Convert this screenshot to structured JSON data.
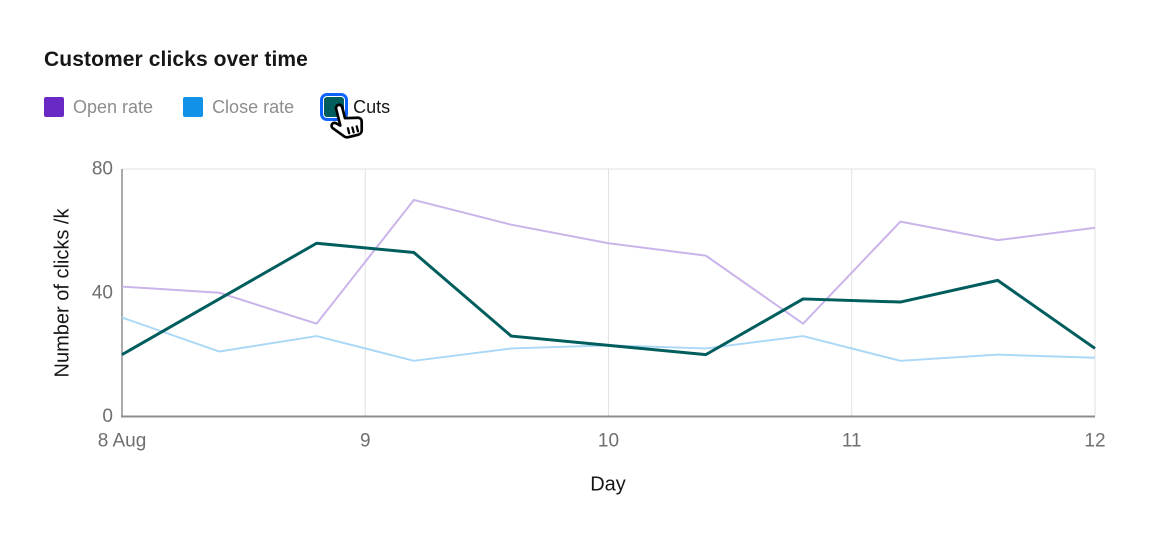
{
  "title": "Customer clicks over time",
  "legend": {
    "items": [
      {
        "label": "Open rate",
        "color": "#6929c4",
        "state": "muted",
        "focused": false
      },
      {
        "label": "Close rate",
        "color": "#1192e8",
        "state": "muted",
        "focused": false
      },
      {
        "label": "Cuts",
        "color": "#005d5d",
        "state": "active",
        "focused": true
      }
    ]
  },
  "chart_data": {
    "type": "line",
    "title": "Customer clicks over time",
    "xlabel": "Day",
    "ylabel": "Number of clicks /k",
    "xlim": [
      8,
      12
    ],
    "ylim": [
      0,
      80
    ],
    "legend_position": "top",
    "grid": {
      "vertical": true,
      "horizontal": "top-only"
    },
    "x": [
      8,
      8.4,
      8.8,
      9.2,
      9.6,
      10,
      10.4,
      10.8,
      11.2,
      11.6,
      12
    ],
    "x_ticks": [
      {
        "label": "8 Aug",
        "value": 8
      },
      {
        "label": "9",
        "value": 9
      },
      {
        "label": "10",
        "value": 10
      },
      {
        "label": "11",
        "value": 11
      },
      {
        "label": "12",
        "value": 12
      }
    ],
    "y_ticks": [
      {
        "label": "0",
        "value": 0
      },
      {
        "label": "40",
        "value": 40
      },
      {
        "label": "80",
        "value": 80
      }
    ],
    "series": [
      {
        "name": "Open rate",
        "line_color": "#cab4ea",
        "line_width": 2,
        "faded": true,
        "values": [
          42,
          40,
          30,
          70,
          62,
          56,
          52,
          30,
          63,
          57,
          61
        ]
      },
      {
        "name": "Close rate",
        "line_color": "#abd8f7",
        "line_width": 2,
        "faded": true,
        "values": [
          32,
          21,
          26,
          18,
          22,
          23,
          22,
          26,
          18,
          20,
          19
        ]
      },
      {
        "name": "Cuts",
        "line_color": "#005d5d",
        "line_width": 3,
        "faded": false,
        "values": [
          20,
          38,
          56,
          53,
          26,
          23,
          20,
          38,
          37,
          44,
          22
        ]
      }
    ]
  },
  "colors": {
    "focus_ring": "#0f62fe",
    "axis_line": "#8d8d8d",
    "gridline": "#e2e2e2",
    "tick_text": "#6f6f6f",
    "title_text": "#161616",
    "muted_label": "#8d8d8d"
  }
}
